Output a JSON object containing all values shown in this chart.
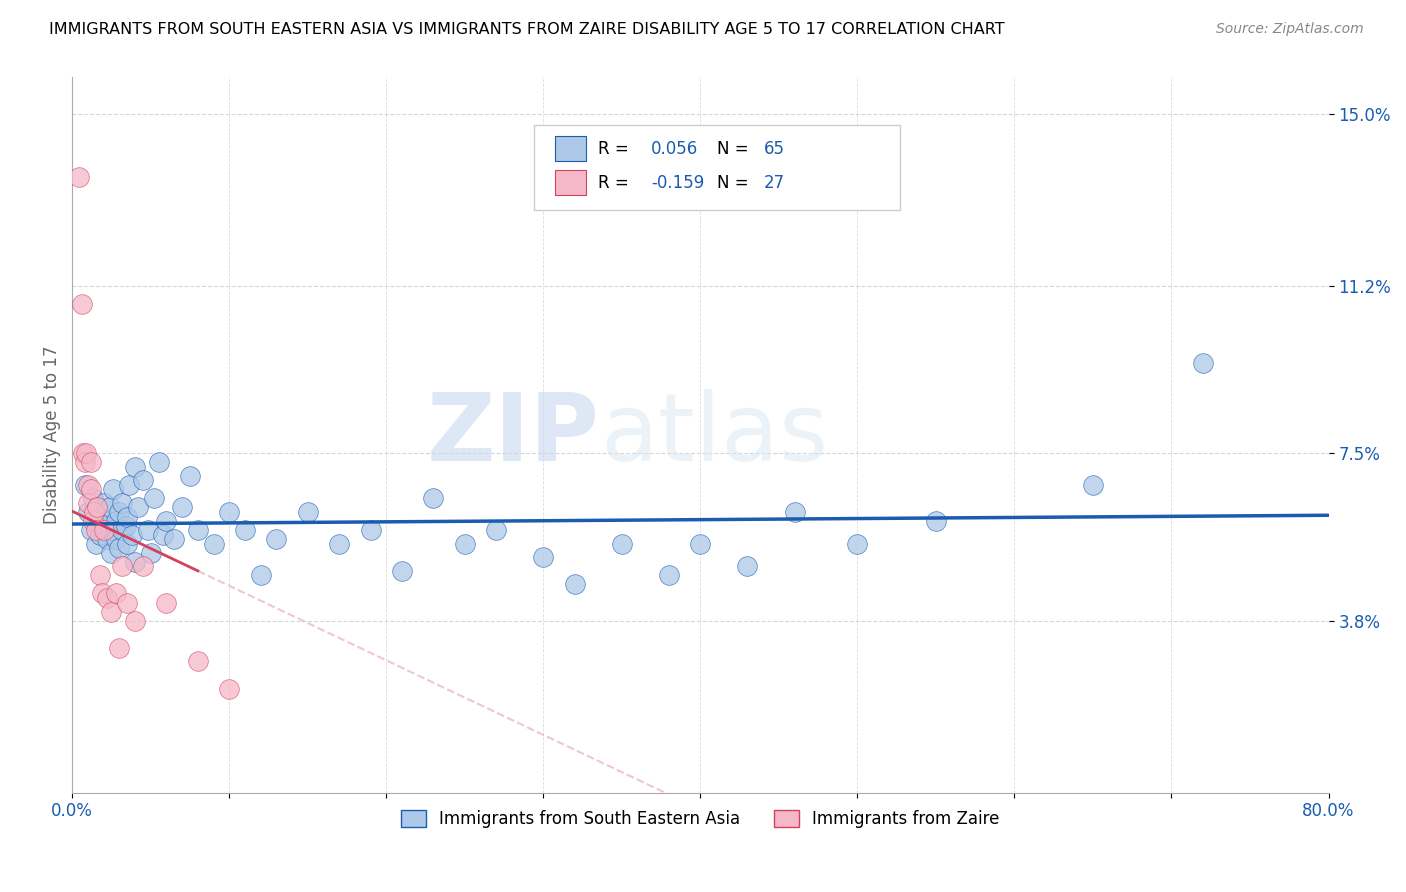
{
  "title": "IMMIGRANTS FROM SOUTH EASTERN ASIA VS IMMIGRANTS FROM ZAIRE DISABILITY AGE 5 TO 17 CORRELATION CHART",
  "source": "Source: ZipAtlas.com",
  "ylabel": "Disability Age 5 to 17",
  "xlim": [
    0.0,
    0.8
  ],
  "ylim": [
    0.0,
    0.158
  ],
  "ytick_positions": [
    0.038,
    0.075,
    0.112,
    0.15
  ],
  "ytick_labels": [
    "3.8%",
    "7.5%",
    "11.2%",
    "15.0%"
  ],
  "blue_color": "#adc8e8",
  "pink_color": "#f5b8c8",
  "blue_line_color": "#1a5cb0",
  "pink_line_color": "#d44060",
  "R_blue": 0.056,
  "N_blue": 65,
  "R_pink": -0.159,
  "N_pink": 27,
  "legend_label_blue": "Immigrants from South Eastern Asia",
  "legend_label_pink": "Immigrants from Zaire",
  "watermark_zip": "ZIP",
  "watermark_atlas": "atlas",
  "blue_scatter_x": [
    0.008,
    0.01,
    0.012,
    0.013,
    0.015,
    0.015,
    0.016,
    0.018,
    0.018,
    0.02,
    0.02,
    0.022,
    0.022,
    0.024,
    0.025,
    0.025,
    0.026,
    0.028,
    0.028,
    0.03,
    0.03,
    0.032,
    0.032,
    0.034,
    0.035,
    0.035,
    0.036,
    0.038,
    0.04,
    0.04,
    0.042,
    0.045,
    0.048,
    0.05,
    0.052,
    0.055,
    0.058,
    0.06,
    0.065,
    0.07,
    0.075,
    0.08,
    0.09,
    0.1,
    0.11,
    0.12,
    0.13,
    0.15,
    0.17,
    0.19,
    0.21,
    0.23,
    0.25,
    0.27,
    0.3,
    0.32,
    0.35,
    0.38,
    0.4,
    0.43,
    0.46,
    0.5,
    0.55,
    0.65,
    0.72
  ],
  "blue_scatter_y": [
    0.068,
    0.062,
    0.058,
    0.065,
    0.06,
    0.055,
    0.063,
    0.057,
    0.061,
    0.059,
    0.064,
    0.06,
    0.056,
    0.063,
    0.058,
    0.053,
    0.067,
    0.056,
    0.06,
    0.054,
    0.062,
    0.058,
    0.064,
    0.059,
    0.055,
    0.061,
    0.068,
    0.057,
    0.072,
    0.051,
    0.063,
    0.069,
    0.058,
    0.053,
    0.065,
    0.073,
    0.057,
    0.06,
    0.056,
    0.063,
    0.07,
    0.058,
    0.055,
    0.062,
    0.058,
    0.048,
    0.056,
    0.062,
    0.055,
    0.058,
    0.049,
    0.065,
    0.055,
    0.058,
    0.052,
    0.046,
    0.055,
    0.048,
    0.055,
    0.05,
    0.062,
    0.055,
    0.06,
    0.068,
    0.095
  ],
  "pink_scatter_x": [
    0.004,
    0.006,
    0.007,
    0.008,
    0.009,
    0.01,
    0.01,
    0.012,
    0.012,
    0.013,
    0.014,
    0.015,
    0.016,
    0.018,
    0.019,
    0.02,
    0.022,
    0.025,
    0.028,
    0.03,
    0.032,
    0.035,
    0.04,
    0.045,
    0.06,
    0.08,
    0.1
  ],
  "pink_scatter_y": [
    0.136,
    0.108,
    0.075,
    0.073,
    0.075,
    0.068,
    0.064,
    0.073,
    0.067,
    0.06,
    0.062,
    0.058,
    0.063,
    0.048,
    0.044,
    0.058,
    0.043,
    0.04,
    0.044,
    0.032,
    0.05,
    0.042,
    0.038,
    0.05,
    0.042,
    0.029,
    0.023
  ]
}
